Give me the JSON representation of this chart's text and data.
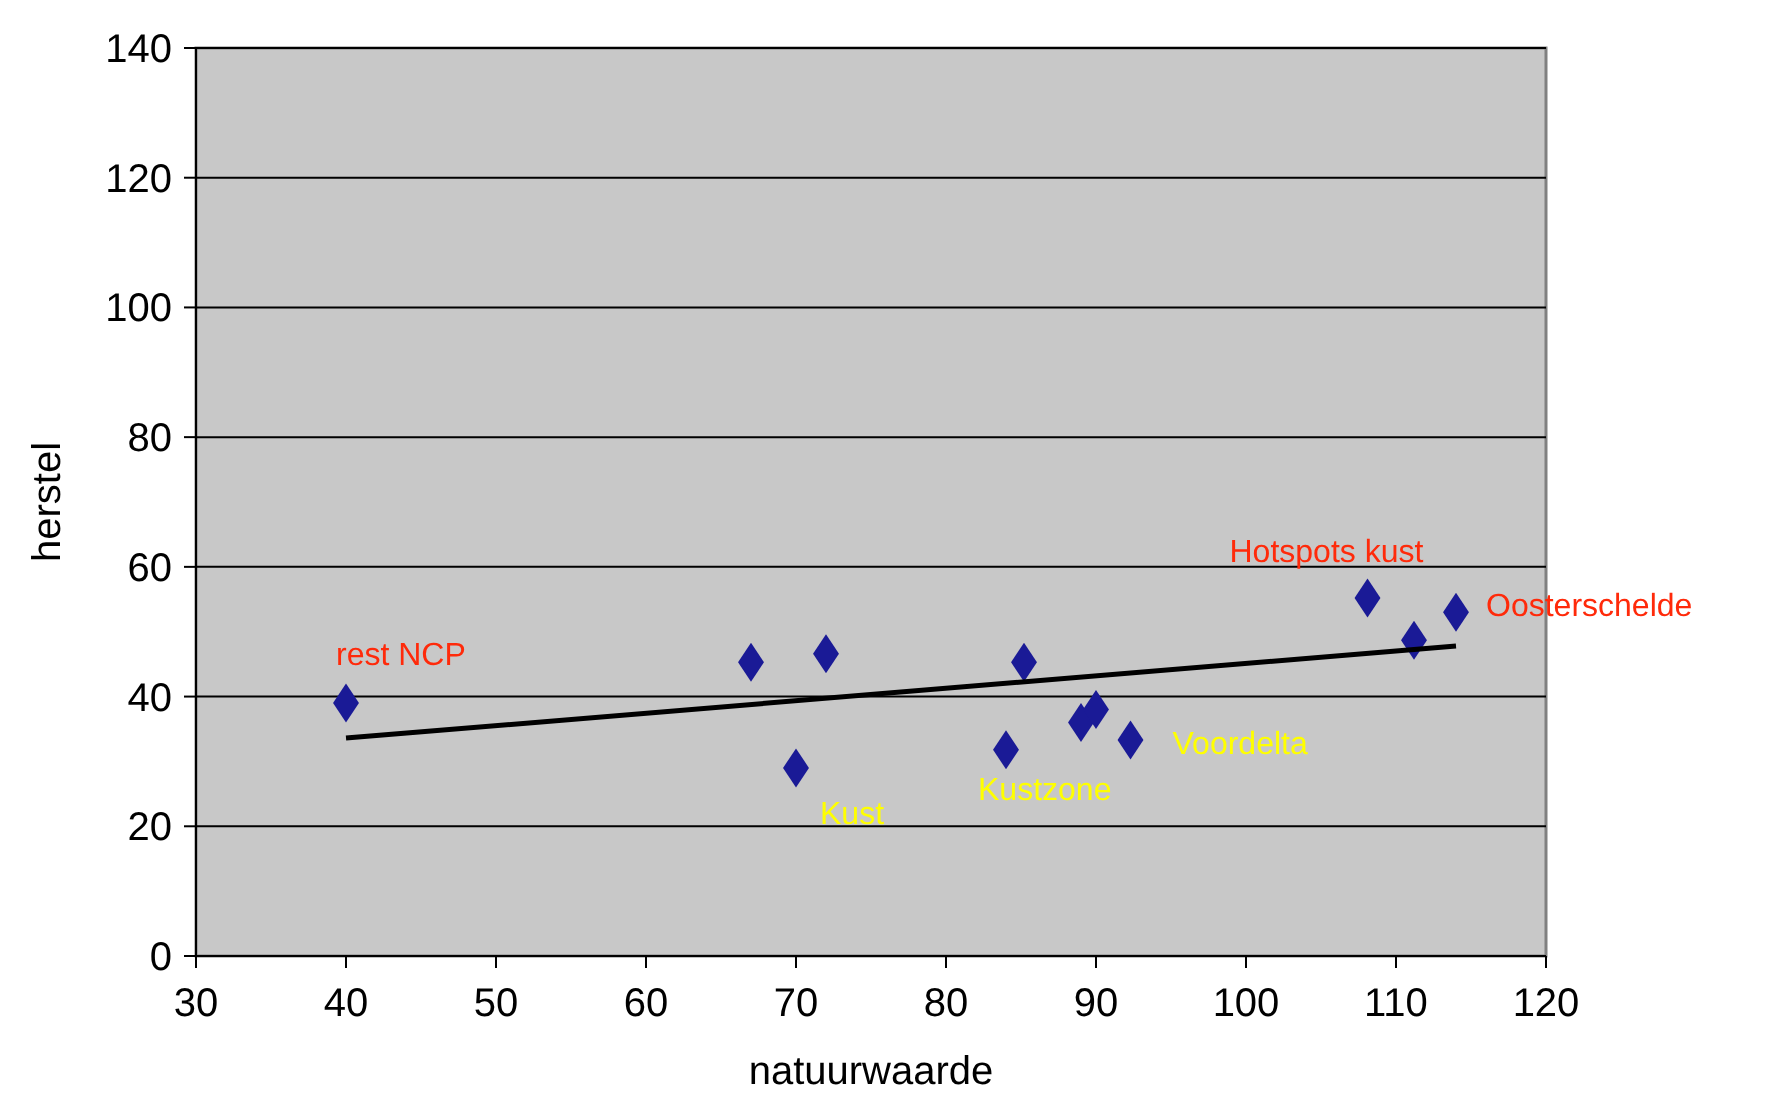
{
  "chart_data": {
    "type": "scatter",
    "xlabel": "natuurwaarde",
    "ylabel": "herstel",
    "xlim": [
      30,
      120
    ],
    "ylim": [
      0,
      140
    ],
    "xticks": [
      30,
      40,
      50,
      60,
      70,
      80,
      90,
      100,
      110,
      120
    ],
    "yticks": [
      0,
      20,
      40,
      60,
      80,
      100,
      120,
      140
    ],
    "grid": "y",
    "series": [
      {
        "marker": "diamond",
        "color": "#1a1a96",
        "x": [
          40,
          67,
          72,
          70,
          85.2,
          84,
          89,
          90,
          92.3,
          108.1,
          111.2,
          114
        ],
        "values": [
          39,
          45.3,
          46.6,
          29,
          45.3,
          31.8,
          36,
          38,
          33.3,
          55.2,
          48.7,
          53
        ]
      },
      {
        "type": "line",
        "marker": "none",
        "color": "#000000",
        "x": [
          40,
          114
        ],
        "values": [
          33.6,
          47.8
        ]
      }
    ],
    "annotations": [
      {
        "text": "rest NCP",
        "x": 40,
        "y": 39
      },
      {
        "text": "Hotspots kust",
        "x": 108.1,
        "y": 55.2
      },
      {
        "text": "Oosterschelde",
        "x": 114,
        "y": 53
      },
      {
        "text": "Kust",
        "x": 70,
        "y": 29
      },
      {
        "text": "Kustzone",
        "x": 84,
        "y": 31.8
      },
      {
        "text": "Voordelta",
        "x": 92.3,
        "y": 33.3
      }
    ]
  }
}
